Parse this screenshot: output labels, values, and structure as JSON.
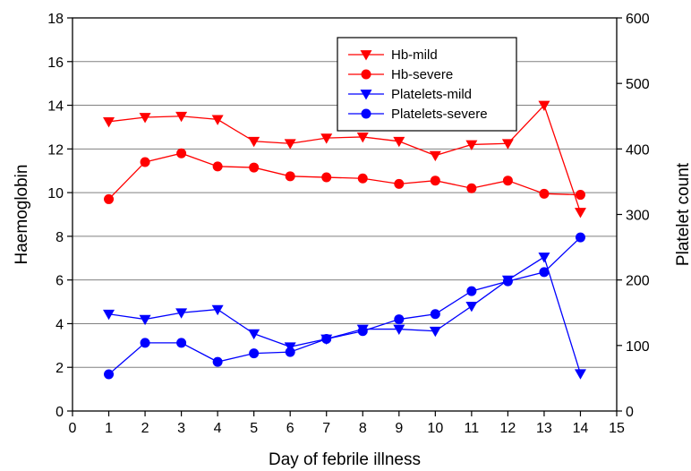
{
  "chart_data": {
    "type": "line",
    "title": "",
    "xlabel": "Day of febrile illness",
    "ylabel_left": "Haemoglobin",
    "ylabel_right": "Platelet count",
    "xlim": [
      0,
      15
    ],
    "ylim_left": [
      0,
      18
    ],
    "ylim_right": [
      0,
      600
    ],
    "x_ticks": [
      "0",
      "1",
      "2",
      "3",
      "4",
      "5",
      "6",
      "7",
      "8",
      "9",
      "10",
      "11",
      "12",
      "13",
      "14",
      "15"
    ],
    "y_left_ticks": [
      "0",
      "2",
      "4",
      "6",
      "8",
      "10",
      "12",
      "14",
      "16",
      "18"
    ],
    "y_right_ticks": [
      "0",
      "100",
      "200",
      "300",
      "400",
      "500",
      "600"
    ],
    "grid": "horizontal",
    "legend_position": "top-right",
    "x": [
      1,
      2,
      3,
      4,
      5,
      6,
      7,
      8,
      9,
      10,
      11,
      12,
      13,
      14
    ],
    "series": [
      {
        "name": "Hb-mild",
        "axis": "left",
        "marker": "triangle-down",
        "color": "#ff0000",
        "values": [
          13.25,
          13.45,
          13.5,
          13.35,
          12.35,
          12.25,
          12.5,
          12.55,
          12.35,
          11.7,
          12.2,
          12.25,
          14.0,
          9.1
        ]
      },
      {
        "name": "Hb-severe",
        "axis": "left",
        "marker": "circle",
        "color": "#ff0000",
        "values": [
          9.7,
          11.4,
          11.8,
          11.2,
          11.15,
          10.75,
          10.7,
          10.65,
          10.4,
          10.55,
          10.2,
          10.55,
          9.95,
          9.9
        ]
      },
      {
        "name": "Platelets-mild",
        "axis": "right",
        "marker": "triangle-down",
        "color": "#0000ff",
        "values": [
          148,
          140,
          150,
          155,
          118,
          98,
          110,
          125,
          125,
          122,
          160,
          200,
          235,
          57
        ]
      },
      {
        "name": "Platelets-severe",
        "axis": "right",
        "marker": "circle",
        "color": "#0000ff",
        "values": [
          56,
          104,
          104,
          75,
          88,
          90,
          110,
          122,
          140,
          148,
          183,
          198,
          212,
          265
        ]
      }
    ]
  }
}
